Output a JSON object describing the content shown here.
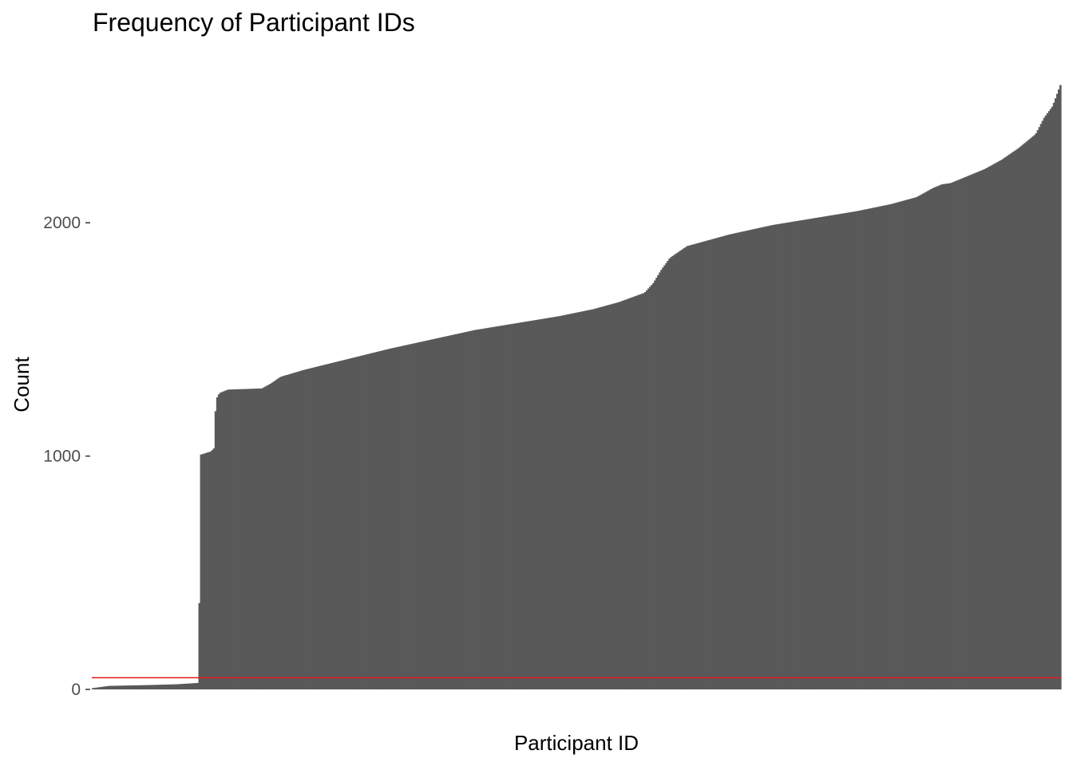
{
  "chart_data": {
    "type": "bar",
    "title": "Frequency of Participant IDs",
    "xlabel": "Participant ID",
    "ylabel": "Count",
    "x_tick_labels_shown": false,
    "sorted_ascending": true,
    "ylim": [
      0,
      2630
    ],
    "yticks": [
      0,
      1000,
      2000
    ],
    "grid": false,
    "bar_color": "#595959",
    "threshold_line": {
      "y": 50,
      "color": "#e41a1c"
    },
    "profile_points": [
      [
        0.0,
        5
      ],
      [
        0.02,
        15
      ],
      [
        0.06,
        18
      ],
      [
        0.1,
        22
      ],
      [
        0.126,
        28
      ],
      [
        0.127,
        1005
      ],
      [
        0.14,
        1020
      ],
      [
        0.144,
        1035
      ],
      [
        0.145,
        1180
      ],
      [
        0.147,
        1250
      ],
      [
        0.15,
        1270
      ],
      [
        0.16,
        1285
      ],
      [
        0.2,
        1290
      ],
      [
        0.21,
        1310
      ],
      [
        0.222,
        1340
      ],
      [
        0.25,
        1370
      ],
      [
        0.3,
        1415
      ],
      [
        0.35,
        1460
      ],
      [
        0.4,
        1500
      ],
      [
        0.45,
        1540
      ],
      [
        0.5,
        1570
      ],
      [
        0.55,
        1600
      ],
      [
        0.59,
        1630
      ],
      [
        0.62,
        1660
      ],
      [
        0.65,
        1700
      ],
      [
        0.66,
        1740
      ],
      [
        0.67,
        1800
      ],
      [
        0.68,
        1850
      ],
      [
        0.7,
        1900
      ],
      [
        0.75,
        1950
      ],
      [
        0.8,
        1990
      ],
      [
        0.85,
        2020
      ],
      [
        0.9,
        2050
      ],
      [
        0.94,
        2080
      ],
      [
        0.97,
        2110
      ],
      [
        0.99,
        2150
      ],
      [
        1.0,
        2165
      ],
      [
        1.01,
        2170
      ],
      [
        1.03,
        2200
      ],
      [
        1.05,
        2230
      ],
      [
        1.07,
        2270
      ],
      [
        1.09,
        2320
      ],
      [
        1.11,
        2380
      ],
      [
        1.12,
        2450
      ],
      [
        1.13,
        2500
      ],
      [
        1.135,
        2550
      ],
      [
        1.14,
        2600
      ]
    ]
  }
}
